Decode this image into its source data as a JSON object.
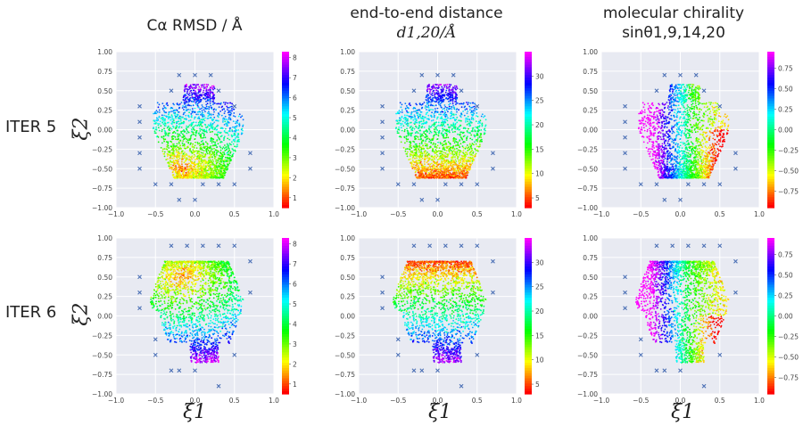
{
  "row_labels": [
    "ITER 5",
    "ITER 6"
  ],
  "col_titles": [
    {
      "line1": "Cα RMSD / Å",
      "line2": ""
    },
    {
      "line1": "end-to-end distance",
      "line2": "d1,20/Å"
    },
    {
      "line1": "molecular chirality",
      "line2": "sinθ1,9,14,20"
    }
  ],
  "axis_labels": {
    "xlabel": "ξ1",
    "ylabel": "ξ2"
  },
  "chart_data": [
    {
      "type": "scatter",
      "row": 0,
      "col": 0,
      "title": "Cα RMSD / Å",
      "row_label": "ITER 5",
      "xlabel": "ξ1",
      "ylabel": "ξ2",
      "xlim": [
        -1,
        1
      ],
      "ylim": [
        -1,
        1
      ],
      "xticks": [
        "−1.0",
        "−0.5",
        "0.0",
        "0.5",
        "1.0"
      ],
      "yticks": [
        "−1.00",
        "−0.75",
        "−0.50",
        "−0.25",
        "0.00",
        "0.25",
        "0.50",
        "0.75",
        "1.00"
      ],
      "colorbar": {
        "min": 0.5,
        "max": 8.3,
        "ticks": [
          "1",
          "2",
          "3",
          "4",
          "5",
          "6",
          "7",
          "8"
        ],
        "tickvals": [
          1,
          2,
          3,
          4,
          5,
          6,
          7,
          8
        ]
      },
      "centers_x": [
        -0.2,
        0.0,
        0.2,
        -0.3,
        0.3,
        -0.7,
        -0.7,
        -0.7,
        -0.7,
        0.7,
        0.7,
        -0.5,
        -0.3,
        0.1,
        0.3,
        0.5,
        -0.2,
        0.0,
        0.5,
        -0.7
      ],
      "centers_y": [
        0.7,
        0.7,
        0.7,
        0.5,
        0.5,
        0.3,
        0.1,
        -0.1,
        -0.3,
        -0.3,
        -0.5,
        -0.7,
        -0.7,
        -0.7,
        -0.7,
        -0.7,
        -0.9,
        -0.9,
        0.3,
        -0.5
      ]
    },
    {
      "type": "scatter",
      "row": 0,
      "col": 1,
      "title": "end-to-end distance d1,20/Å",
      "row_label": "ITER 5",
      "xlabel": "ξ1",
      "ylabel": "ξ2",
      "xlim": [
        -1,
        1
      ],
      "ylim": [
        -1,
        1
      ],
      "xticks": [
        "−1.0",
        "−0.5",
        "0.0",
        "0.5",
        "1.0"
      ],
      "yticks": [
        "−1.00",
        "−0.75",
        "−0.50",
        "−0.25",
        "0.00",
        "0.25",
        "0.50",
        "0.75",
        "1.00"
      ],
      "colorbar": {
        "min": 3,
        "max": 35,
        "ticks": [
          "5",
          "10",
          "15",
          "20",
          "25",
          "30"
        ],
        "tickvals": [
          5,
          10,
          15,
          20,
          25,
          30
        ]
      },
      "centers_x": [
        -0.2,
        0.0,
        0.2,
        -0.3,
        0.3,
        -0.7,
        -0.7,
        -0.7,
        -0.7,
        0.7,
        0.7,
        -0.5,
        -0.3,
        0.1,
        0.3,
        0.5,
        -0.2,
        0.0,
        0.5,
        -0.7
      ],
      "centers_y": [
        0.7,
        0.7,
        0.7,
        0.5,
        0.5,
        0.3,
        0.1,
        -0.1,
        -0.3,
        -0.3,
        -0.5,
        -0.7,
        -0.7,
        -0.7,
        -0.7,
        -0.7,
        -0.9,
        -0.9,
        0.3,
        -0.5
      ]
    },
    {
      "type": "scatter",
      "row": 0,
      "col": 2,
      "title": "molecular chirality sinθ1,9,14,20",
      "row_label": "ITER 5",
      "xlabel": "ξ1",
      "ylabel": "ξ2",
      "xlim": [
        -1,
        1
      ],
      "ylim": [
        -1,
        1
      ],
      "xticks": [
        "−1.0",
        "−0.5",
        "0.0",
        "0.5",
        "1.0"
      ],
      "yticks": [
        "−1.00",
        "−0.75",
        "−0.50",
        "−0.25",
        "0.00",
        "0.25",
        "0.50",
        "0.75",
        "1.00"
      ],
      "colorbar": {
        "min": -0.95,
        "max": 0.95,
        "ticks": [
          "−0.75",
          "−0.50",
          "−0.25",
          "0.00",
          "0.25",
          "0.50",
          "0.75"
        ],
        "tickvals": [
          -0.75,
          -0.5,
          -0.25,
          0,
          0.25,
          0.5,
          0.75
        ]
      },
      "centers_x": [
        -0.2,
        0.0,
        0.2,
        -0.3,
        0.3,
        -0.7,
        -0.7,
        -0.7,
        -0.7,
        0.7,
        0.7,
        -0.5,
        -0.3,
        0.1,
        0.3,
        0.5,
        -0.2,
        0.0,
        0.5,
        -0.7
      ],
      "centers_y": [
        0.7,
        0.7,
        0.7,
        0.5,
        0.5,
        0.3,
        0.1,
        -0.1,
        -0.3,
        -0.3,
        -0.5,
        -0.7,
        -0.7,
        -0.7,
        -0.7,
        -0.7,
        -0.9,
        -0.9,
        0.3,
        -0.5
      ]
    },
    {
      "type": "scatter",
      "row": 1,
      "col": 0,
      "title": "Cα RMSD / Å",
      "row_label": "ITER 6",
      "xlabel": "ξ1",
      "ylabel": "ξ2",
      "xlim": [
        -1,
        1
      ],
      "ylim": [
        -1,
        1
      ],
      "xticks": [
        "−1.0",
        "−0.5",
        "0.0",
        "0.5",
        "1.0"
      ],
      "yticks": [
        "−1.00",
        "−0.75",
        "−0.50",
        "−0.25",
        "0.00",
        "0.25",
        "0.50",
        "0.75",
        "1.00"
      ],
      "colorbar": {
        "min": 0.5,
        "max": 8.3,
        "ticks": [
          "1",
          "2",
          "3",
          "4",
          "5",
          "6",
          "7",
          "8"
        ],
        "tickvals": [
          1,
          2,
          3,
          4,
          5,
          6,
          7,
          8
        ]
      },
      "centers_x": [
        -0.3,
        -0.1,
        0.1,
        0.3,
        0.5,
        -0.7,
        -0.7,
        -0.7,
        0.7,
        0.7,
        -0.5,
        -0.5,
        -0.3,
        0.0,
        0.5,
        -0.2,
        0.3
      ],
      "centers_y": [
        0.9,
        0.9,
        0.9,
        0.9,
        0.9,
        0.5,
        0.3,
        0.1,
        0.7,
        0.3,
        -0.3,
        -0.5,
        -0.7,
        -0.7,
        -0.5,
        -0.7,
        -0.9
      ]
    },
    {
      "type": "scatter",
      "row": 1,
      "col": 1,
      "title": "end-to-end distance d1,20/Å",
      "row_label": "ITER 6",
      "xlabel": "ξ1",
      "ylabel": "ξ2",
      "xlim": [
        -1,
        1
      ],
      "ylim": [
        -1,
        1
      ],
      "xticks": [
        "−1.0",
        "−0.5",
        "0.0",
        "0.5",
        "1.0"
      ],
      "yticks": [
        "−1.00",
        "−0.75",
        "−0.50",
        "−0.25",
        "0.00",
        "0.25",
        "0.50",
        "0.75",
        "1.00"
      ],
      "colorbar": {
        "min": 3,
        "max": 35,
        "ticks": [
          "5",
          "10",
          "15",
          "20",
          "25",
          "30"
        ],
        "tickvals": [
          5,
          10,
          15,
          20,
          25,
          30
        ]
      },
      "centers_x": [
        -0.3,
        -0.1,
        0.1,
        0.3,
        0.5,
        -0.7,
        -0.7,
        -0.7,
        0.7,
        0.7,
        -0.5,
        -0.5,
        -0.3,
        0.0,
        0.5,
        -0.2,
        0.3
      ],
      "centers_y": [
        0.9,
        0.9,
        0.9,
        0.9,
        0.9,
        0.5,
        0.3,
        0.1,
        0.7,
        0.3,
        -0.3,
        -0.5,
        -0.7,
        -0.7,
        -0.5,
        -0.7,
        -0.9
      ]
    },
    {
      "type": "scatter",
      "row": 1,
      "col": 2,
      "title": "molecular chirality sinθ1,9,14,20",
      "row_label": "ITER 6",
      "xlabel": "ξ1",
      "ylabel": "ξ2",
      "xlim": [
        -1,
        1
      ],
      "ylim": [
        -1,
        1
      ],
      "xticks": [
        "−1.0",
        "−0.5",
        "0.0",
        "0.5",
        "1.0"
      ],
      "yticks": [
        "−1.00",
        "−0.75",
        "−0.50",
        "−0.25",
        "0.00",
        "0.25",
        "0.50",
        "0.75",
        "1.00"
      ],
      "colorbar": {
        "min": -0.95,
        "max": 0.95,
        "ticks": [
          "−0.75",
          "−0.50",
          "−0.25",
          "0.00",
          "0.25",
          "0.50",
          "0.75"
        ],
        "tickvals": [
          -0.75,
          -0.5,
          -0.25,
          0,
          0.25,
          0.5,
          0.75
        ]
      },
      "centers_x": [
        -0.3,
        -0.1,
        0.1,
        0.3,
        0.5,
        -0.7,
        -0.7,
        -0.7,
        0.7,
        0.7,
        -0.5,
        -0.5,
        -0.3,
        0.0,
        0.5,
        -0.2,
        0.3
      ],
      "centers_y": [
        0.9,
        0.9,
        0.9,
        0.9,
        0.9,
        0.5,
        0.3,
        0.1,
        0.7,
        0.3,
        -0.3,
        -0.5,
        -0.7,
        -0.7,
        -0.5,
        -0.7,
        -0.9
      ]
    }
  ]
}
